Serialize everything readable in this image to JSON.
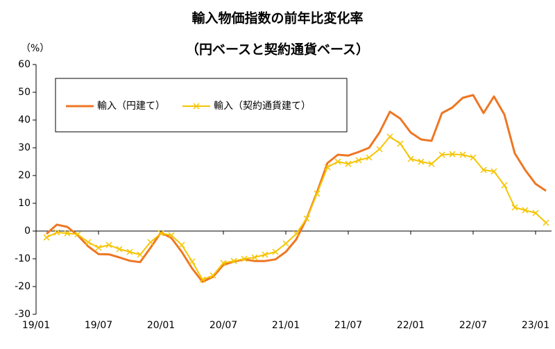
{
  "chart_data": {
    "type": "line",
    "title": "輸入物価指数の前年比変化率",
    "subtitle": "（円ベースと契約通貨ベース）",
    "y_unit": "（%）",
    "categories": [
      "19/01",
      null,
      null,
      null,
      null,
      null,
      "19/07",
      null,
      null,
      null,
      null,
      null,
      "20/01",
      null,
      null,
      null,
      null,
      null,
      "20/07",
      null,
      null,
      null,
      null,
      null,
      "21/01",
      null,
      null,
      null,
      null,
      null,
      "21/07",
      null,
      null,
      null,
      null,
      null,
      "22/01",
      null,
      null,
      null,
      null,
      null,
      "22/07",
      null,
      null,
      null,
      null,
      null,
      "23/01",
      null
    ],
    "series": [
      {
        "name": "輸入（円建て）",
        "color": "#ee7622",
        "marker": "none",
        "values": [
          null,
          -1,
          2.3,
          1.5,
          -1.5,
          -5.5,
          -8.3,
          -8.4,
          -9.5,
          -10.7,
          -11.2,
          -6,
          -0.5,
          -2.5,
          -7.5,
          -13.5,
          -18.3,
          -16.5,
          -12.2,
          -11,
          -10.2,
          -10.8,
          -10.8,
          -10.2,
          -7.5,
          -3,
          4.5,
          14,
          24.5,
          27.5,
          27.2,
          28.5,
          30,
          35.5,
          43,
          40.5,
          35.5,
          33,
          32.5,
          42.5,
          44.5,
          48,
          49,
          42.5,
          48.5,
          42,
          28,
          22,
          17,
          14.5
        ]
      },
      {
        "name": "輸入（契約通貨建て）",
        "color": "#f5c400",
        "marker": "x",
        "values": [
          null,
          -2.3,
          -0.5,
          -0.8,
          -1.2,
          -4,
          -6,
          -5,
          -6.5,
          -7.5,
          -8.5,
          -4,
          -0.8,
          -1.5,
          -5,
          -11,
          -17.5,
          -16,
          -11.5,
          -10.8,
          -10,
          -9.5,
          -8.5,
          -7.5,
          -4.5,
          -1,
          4.5,
          13.5,
          23,
          25,
          24.2,
          25.5,
          26.5,
          29.5,
          34,
          31.5,
          26,
          25,
          24.2,
          27.5,
          27.7,
          27.5,
          26.5,
          22,
          21.5,
          16.5,
          8.5,
          7.5,
          6.5,
          3
        ]
      }
    ],
    "ylim": [
      -30,
      60
    ],
    "yticks": [
      -30,
      -20,
      -10,
      0,
      10,
      20,
      30,
      40,
      50,
      60
    ],
    "legend": "upper left",
    "grid": false
  }
}
